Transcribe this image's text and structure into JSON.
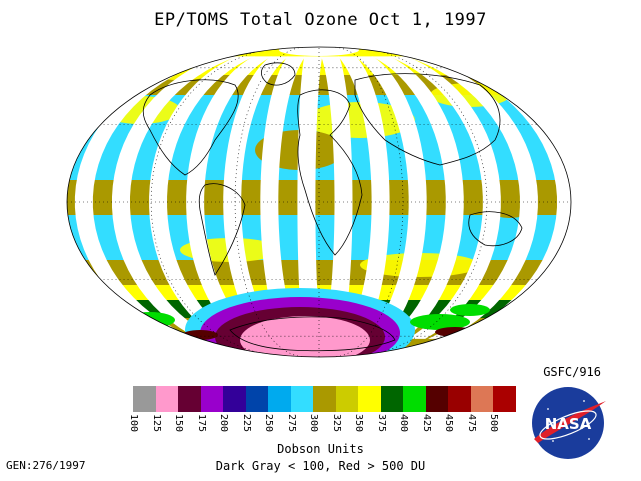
{
  "title": "EP/TOMS Total Ozone Oct  1, 1997",
  "credit": "GSFC/916",
  "units_label": "Dobson Units",
  "range_note": "Dark Gray < 100, Red > 500 DU",
  "gen_label": "GEN:276/1997",
  "logo_text": "NASA",
  "legend": {
    "bins": [
      {
        "value": "100",
        "color": "#999999"
      },
      {
        "value": "125",
        "color": "#ff99cc"
      },
      {
        "value": "150",
        "color": "#660033"
      },
      {
        "value": "175",
        "color": "#9900cc"
      },
      {
        "value": "200",
        "color": "#330099"
      },
      {
        "value": "225",
        "color": "#0044aa"
      },
      {
        "value": "250",
        "color": "#00aaee"
      },
      {
        "value": "275",
        "color": "#33ddff"
      },
      {
        "value": "300",
        "color": "#aa9900"
      },
      {
        "value": "325",
        "color": "#cccc00"
      },
      {
        "value": "350",
        "color": "#ffff00"
      },
      {
        "value": "375",
        "color": "#006600"
      },
      {
        "value": "400",
        "color": "#00dd00"
      },
      {
        "value": "425",
        "color": "#550000"
      },
      {
        "value": "450",
        "color": "#990000"
      },
      {
        "value": "475",
        "color": "#dd7755"
      },
      {
        "value": "500",
        "color": "#aa0000"
      }
    ]
  },
  "map_colors": {
    "gap": "#ffffff",
    "low_lat": "#33ddff",
    "mid": "#aa9900",
    "high": "#ffff00",
    "ring": "#006600",
    "hole_outer": "#9900cc",
    "hole_mid": "#660033",
    "hole_core": "#ff99cc",
    "coast": "#000000"
  }
}
